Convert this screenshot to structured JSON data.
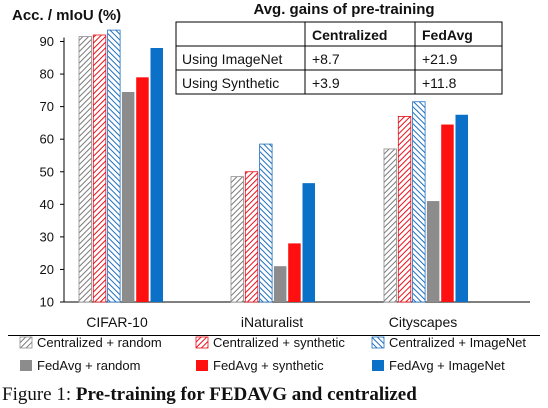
{
  "chart_data": {
    "type": "bar",
    "ylabel": "Acc. / mIoU (%)",
    "ylim": [
      10,
      90
    ],
    "yticks": [
      "10",
      "20",
      "30",
      "40",
      "50",
      "60",
      "70",
      "80",
      "90"
    ],
    "categories": [
      "CIFAR-10",
      "iNaturalist",
      "Cityscapes"
    ],
    "grid": false,
    "series": [
      {
        "name": "Centralized + random",
        "values": [
          91.5,
          48.5,
          57.0
        ],
        "color": "#8c8c8c",
        "pattern": "hatch-gray"
      },
      {
        "name": "Centralized + synthetic",
        "values": [
          92.0,
          50.0,
          67.0
        ],
        "color": "#e8101a",
        "pattern": "hatch-red"
      },
      {
        "name": "Centralized + ImageNet",
        "values": [
          93.5,
          58.5,
          71.5
        ],
        "color": "#1f6fbf",
        "pattern": "hatch-blue"
      },
      {
        "name": "FedAvg + random",
        "values": [
          74.5,
          21.0,
          41.0
        ],
        "color": "#8c8c8c",
        "pattern": "solid"
      },
      {
        "name": "FedAvg + synthetic",
        "values": [
          79.0,
          28.0,
          64.5
        ],
        "color": "#ff1010",
        "pattern": "solid"
      },
      {
        "name": "FedAvg + ImageNet",
        "values": [
          88.0,
          46.5,
          67.5
        ],
        "color": "#0a70c8",
        "pattern": "solid"
      }
    ],
    "inset_table": {
      "title": "Avg. gains of pre-training",
      "columns": [
        "",
        "Centralized",
        "FedAvg"
      ],
      "rows": [
        [
          "Using ImageNet",
          "+8.7",
          "+21.9"
        ],
        [
          "Using Synthetic",
          "+3.9",
          "+11.8"
        ]
      ]
    },
    "legend_position": "bottom"
  },
  "caption": {
    "prefix": "Figure 1: ",
    "bold_text": "Pre-training for FEDAVG and centralized"
  }
}
